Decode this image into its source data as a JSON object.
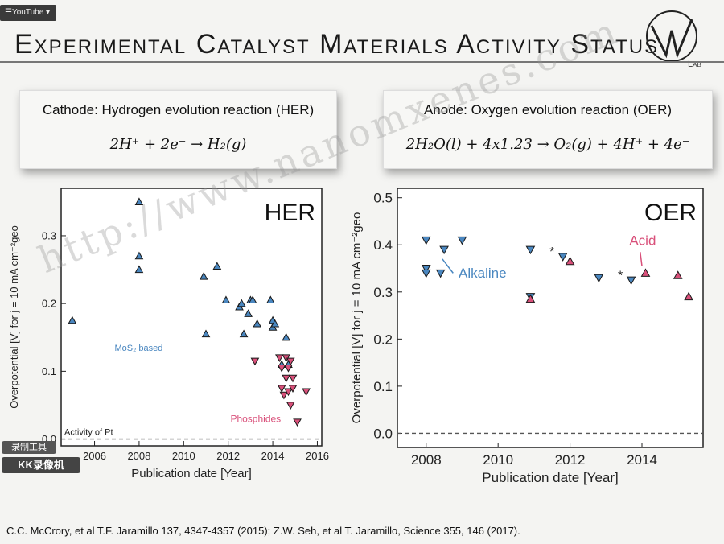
{
  "badge": "YouTube",
  "slide_title": "Experimental Catalyst Materials Activity Status",
  "logo_text": "Lab",
  "her_box": {
    "title": "Cathode: Hydrogen evolution reaction (HER)",
    "equation": "2H⁺ + 2e⁻ → H₂(g)"
  },
  "oer_box": {
    "title": "Anode: Oxygen evolution reaction (OER)",
    "equation": "2H₂O(l) + 4x1.23 → O₂(g) + 4H⁺ + 4e⁻"
  },
  "citation": "C.C. McCrory, et al T.F. Jaramillo 137, 4347-4357 (2015); Z.W. Seh, et al T. Jaramillo, Science 355, 146 (2017).",
  "watermark": "http://www.nanomxenes.com",
  "kk_badge_1": "录制工具",
  "kk_badge_2": "KK录像机",
  "colors": {
    "mos2": "#4a87c0",
    "phosphide": "#d9507a",
    "alkaline": "#4a87c0",
    "acid": "#d9507a"
  },
  "chart_data": [
    {
      "type": "scatter",
      "title": "HER",
      "xlabel": "Publication date [Year]",
      "ylabel": "Overpotential [V] for j = 10 mA cm⁻²geo",
      "xlim": [
        2004.5,
        2016.2
      ],
      "ylim": [
        -0.01,
        0.37
      ],
      "xticks": [
        2006,
        2008,
        2010,
        2012,
        2014,
        2016
      ],
      "yticks": [
        0.0,
        0.1,
        0.2,
        0.3
      ],
      "ytick_labels": [
        "0.0",
        "0.1",
        "0.2",
        "0.3"
      ],
      "reference_line": {
        "y": 0.0,
        "label": "Activity of Pt"
      },
      "annotations": [
        {
          "text": "MoS₂ based",
          "series": "MoS2"
        },
        {
          "text": "Phosphides",
          "series": "Phosphides"
        }
      ],
      "grid": false,
      "series": [
        {
          "key": "MoS2",
          "marker": "triangle-up",
          "color": "#4a87c0",
          "x": [
            2005.0,
            2008.0,
            2008.0,
            2008.0,
            2010.9,
            2011.0,
            2011.5,
            2011.9,
            2012.5,
            2012.6,
            2012.7,
            2012.9,
            2013.0,
            2013.1,
            2013.3,
            2013.9,
            2014.0,
            2014.0,
            2014.1,
            2014.4,
            2014.6,
            2014.7
          ],
          "y": [
            0.175,
            0.35,
            0.27,
            0.25,
            0.24,
            0.155,
            0.255,
            0.205,
            0.195,
            0.2,
            0.155,
            0.185,
            0.205,
            0.205,
            0.17,
            0.205,
            0.175,
            0.165,
            0.17,
            0.11,
            0.15,
            0.11
          ]
        },
        {
          "key": "Phosphides",
          "marker": "triangle-down",
          "color": "#d9507a",
          "x": [
            2013.2,
            2014.3,
            2014.4,
            2014.4,
            2014.5,
            2014.6,
            2014.6,
            2014.7,
            2014.7,
            2014.8,
            2014.8,
            2014.9,
            2014.9,
            2015.1,
            2015.5
          ],
          "y": [
            0.115,
            0.12,
            0.105,
            0.075,
            0.065,
            0.12,
            0.09,
            0.105,
            0.07,
            0.115,
            0.05,
            0.09,
            0.075,
            0.025,
            0.07
          ]
        }
      ]
    },
    {
      "type": "scatter",
      "title": "OER",
      "xlabel": "Publication date [Year]",
      "ylabel": "Overpotential [V] for j = 10 mA cm⁻²geo",
      "xlim": [
        2007.2,
        2015.7
      ],
      "ylim": [
        -0.03,
        0.52
      ],
      "xticks": [
        2008,
        2010,
        2012,
        2014
      ],
      "yticks": [
        0.0,
        0.1,
        0.2,
        0.3,
        0.4,
        0.5
      ],
      "ytick_labels": [
        "0.0",
        "0.1",
        "0.2",
        "0.3",
        "0.4",
        "0.5"
      ],
      "reference_line": {
        "y": 0.0
      },
      "annotations": [
        {
          "text": "Alkaline",
          "series": "Alkaline"
        },
        {
          "text": "Acid",
          "series": "Acid"
        }
      ],
      "grid": false,
      "series": [
        {
          "key": "Alkaline",
          "marker": "triangle-down",
          "color": "#4a87c0",
          "x": [
            2008.0,
            2008.0,
            2008.0,
            2008.4,
            2008.5,
            2009.0,
            2010.9,
            2010.9,
            2011.8,
            2012.8,
            2013.7
          ],
          "y": [
            0.41,
            0.35,
            0.34,
            0.34,
            0.39,
            0.41,
            0.39,
            0.29,
            0.375,
            0.33,
            0.325
          ]
        },
        {
          "key": "Acid",
          "marker": "triangle-up",
          "color": "#d9507a",
          "x": [
            2010.9,
            2012.0,
            2014.1,
            2015.0,
            2015.3
          ],
          "y": [
            0.285,
            0.365,
            0.34,
            0.335,
            0.29
          ]
        }
      ],
      "asterisks": [
        {
          "x": 2011.5,
          "y": 0.385
        },
        {
          "x": 2013.4,
          "y": 0.335
        }
      ]
    }
  ]
}
